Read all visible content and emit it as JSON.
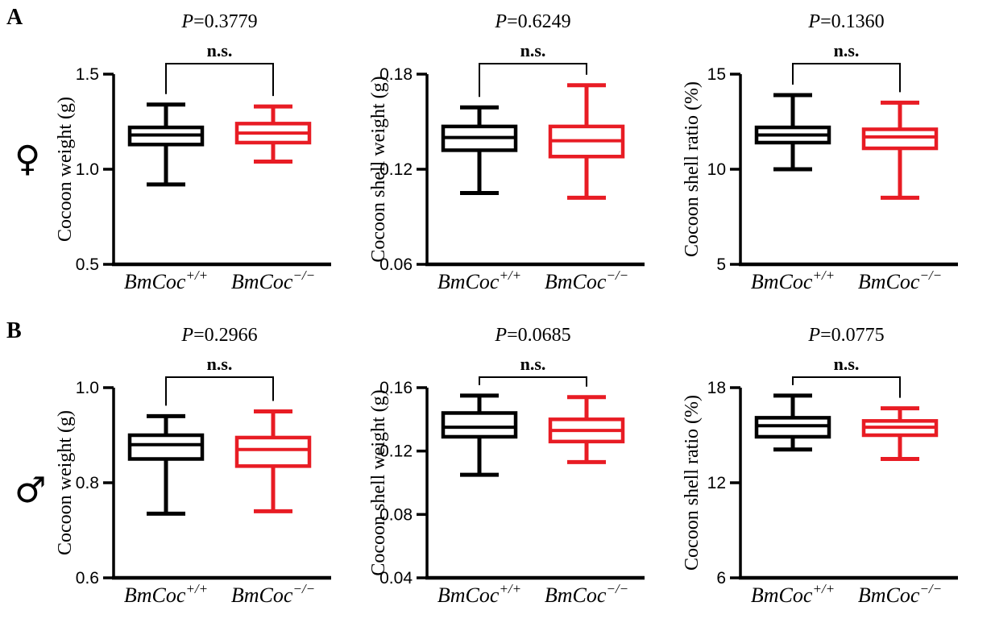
{
  "figure": {
    "rows": [
      {
        "letter": "A",
        "symbol": "♀",
        "sex": "female"
      },
      {
        "letter": "B",
        "symbol": "♂",
        "sex": "male"
      }
    ]
  },
  "colors": {
    "wild_type": "#000000",
    "knockout": "#E81C24"
  },
  "chart_data": [
    {
      "type": "box",
      "panel": "A1",
      "row": "A",
      "p": {
        "italic": "P",
        "rest": "=0.3779"
      },
      "significance": "n.s.",
      "ylabel": "Cocoon weight (g)",
      "ylim": [
        0.5,
        1.5
      ],
      "yticks": [
        {
          "v": 0.5,
          "label": "0.5"
        },
        {
          "v": 1.0,
          "label": "1.0"
        },
        {
          "v": 1.5,
          "label": "1.5"
        }
      ],
      "categories": [
        {
          "base": "BmCoc",
          "sup": "+/+"
        },
        {
          "base": "BmCoc",
          "sup": "−/−"
        }
      ],
      "series": [
        {
          "name": "BmCoc+/+",
          "color": "#000000",
          "min": 0.92,
          "q1": 1.13,
          "median": 1.18,
          "q3": 1.22,
          "max": 1.34
        },
        {
          "name": "BmCoc−/−",
          "color": "#E81C24",
          "min": 1.04,
          "q1": 1.14,
          "median": 1.19,
          "q3": 1.24,
          "max": 1.33
        }
      ]
    },
    {
      "type": "box",
      "panel": "A2",
      "row": "A",
      "p": {
        "italic": "P",
        "rest": "=0.6249"
      },
      "significance": "n.s.",
      "ylabel": "Cocoon shell weight (g)",
      "ylim": [
        0.06,
        0.18
      ],
      "yticks": [
        {
          "v": 0.06,
          "label": "0.06"
        },
        {
          "v": 0.12,
          "label": "0.12"
        },
        {
          "v": 0.18,
          "label": "0.18"
        }
      ],
      "categories": [
        {
          "base": "BmCoc",
          "sup": "+/+"
        },
        {
          "base": "BmCoc",
          "sup": "−/−"
        }
      ],
      "series": [
        {
          "name": "BmCoc+/+",
          "color": "#000000",
          "min": 0.105,
          "q1": 0.132,
          "median": 0.14,
          "q3": 0.147,
          "max": 0.159
        },
        {
          "name": "BmCoc−/−",
          "color": "#E81C24",
          "min": 0.102,
          "q1": 0.128,
          "median": 0.138,
          "q3": 0.147,
          "max": 0.173
        }
      ]
    },
    {
      "type": "box",
      "panel": "A3",
      "row": "A",
      "p": {
        "italic": "P",
        "rest": "=0.1360"
      },
      "significance": "n.s.",
      "ylabel": "Cocoon shell ratio (%)",
      "ylim": [
        5,
        15
      ],
      "yticks": [
        {
          "v": 5,
          "label": "5"
        },
        {
          "v": 10,
          "label": "10"
        },
        {
          "v": 15,
          "label": "15"
        }
      ],
      "categories": [
        {
          "base": "BmCoc",
          "sup": "+/+"
        },
        {
          "base": "BmCoc",
          "sup": "−/−"
        }
      ],
      "series": [
        {
          "name": "BmCoc+/+",
          "color": "#000000",
          "min": 10.0,
          "q1": 11.4,
          "median": 11.8,
          "q3": 12.2,
          "max": 13.9
        },
        {
          "name": "BmCoc−/−",
          "color": "#E81C24",
          "min": 8.5,
          "q1": 11.1,
          "median": 11.7,
          "q3": 12.1,
          "max": 13.5
        }
      ]
    },
    {
      "type": "box",
      "panel": "B1",
      "row": "B",
      "p": {
        "italic": "P",
        "rest": "=0.2966"
      },
      "significance": "n.s.",
      "ylabel": "Cocoon weight (g)",
      "ylim": [
        0.6,
        1.0
      ],
      "yticks": [
        {
          "v": 0.6,
          "label": "0.6"
        },
        {
          "v": 0.8,
          "label": "0.8"
        },
        {
          "v": 1.0,
          "label": "1.0"
        }
      ],
      "categories": [
        {
          "base": "BmCoc",
          "sup": "+/+"
        },
        {
          "base": "BmCoc",
          "sup": "−/−"
        }
      ],
      "series": [
        {
          "name": "BmCoc+/+",
          "color": "#000000",
          "min": 0.735,
          "q1": 0.85,
          "median": 0.88,
          "q3": 0.9,
          "max": 0.94
        },
        {
          "name": "BmCoc−/−",
          "color": "#E81C24",
          "min": 0.74,
          "q1": 0.835,
          "median": 0.87,
          "q3": 0.895,
          "max": 0.95
        }
      ]
    },
    {
      "type": "box",
      "panel": "B2",
      "row": "B",
      "p": {
        "italic": "P",
        "rest": "=0.0685"
      },
      "significance": "n.s.",
      "ylabel": "Cocoon shell weight (g)",
      "ylim": [
        0.04,
        0.16
      ],
      "yticks": [
        {
          "v": 0.04,
          "label": "0.04"
        },
        {
          "v": 0.08,
          "label": "0.08"
        },
        {
          "v": 0.12,
          "label": "0.12"
        },
        {
          "v": 0.16,
          "label": "0.16"
        }
      ],
      "categories": [
        {
          "base": "BmCoc",
          "sup": "+/+"
        },
        {
          "base": "BmCoc",
          "sup": "−/−"
        }
      ],
      "series": [
        {
          "name": "BmCoc+/+",
          "color": "#000000",
          "min": 0.105,
          "q1": 0.129,
          "median": 0.135,
          "q3": 0.144,
          "max": 0.155
        },
        {
          "name": "BmCoc−/−",
          "color": "#E81C24",
          "min": 0.113,
          "q1": 0.126,
          "median": 0.133,
          "q3": 0.14,
          "max": 0.154
        }
      ]
    },
    {
      "type": "box",
      "panel": "B3",
      "row": "B",
      "p": {
        "italic": "P",
        "rest": "=0.0775"
      },
      "significance": "n.s.",
      "ylabel": "Cocoon shell ratio (%)",
      "ylim": [
        6,
        18
      ],
      "yticks": [
        {
          "v": 6,
          "label": "6"
        },
        {
          "v": 12,
          "label": "12"
        },
        {
          "v": 18,
          "label": "18"
        }
      ],
      "categories": [
        {
          "base": "BmCoc",
          "sup": "+/+"
        },
        {
          "base": "BmCoc",
          "sup": "−/−"
        }
      ],
      "series": [
        {
          "name": "BmCoc+/+",
          "color": "#000000",
          "min": 14.1,
          "q1": 14.9,
          "median": 15.6,
          "q3": 16.1,
          "max": 17.5
        },
        {
          "name": "BmCoc−/−",
          "color": "#E81C24",
          "min": 13.5,
          "q1": 15.0,
          "median": 15.5,
          "q3": 15.9,
          "max": 16.7
        }
      ]
    }
  ]
}
